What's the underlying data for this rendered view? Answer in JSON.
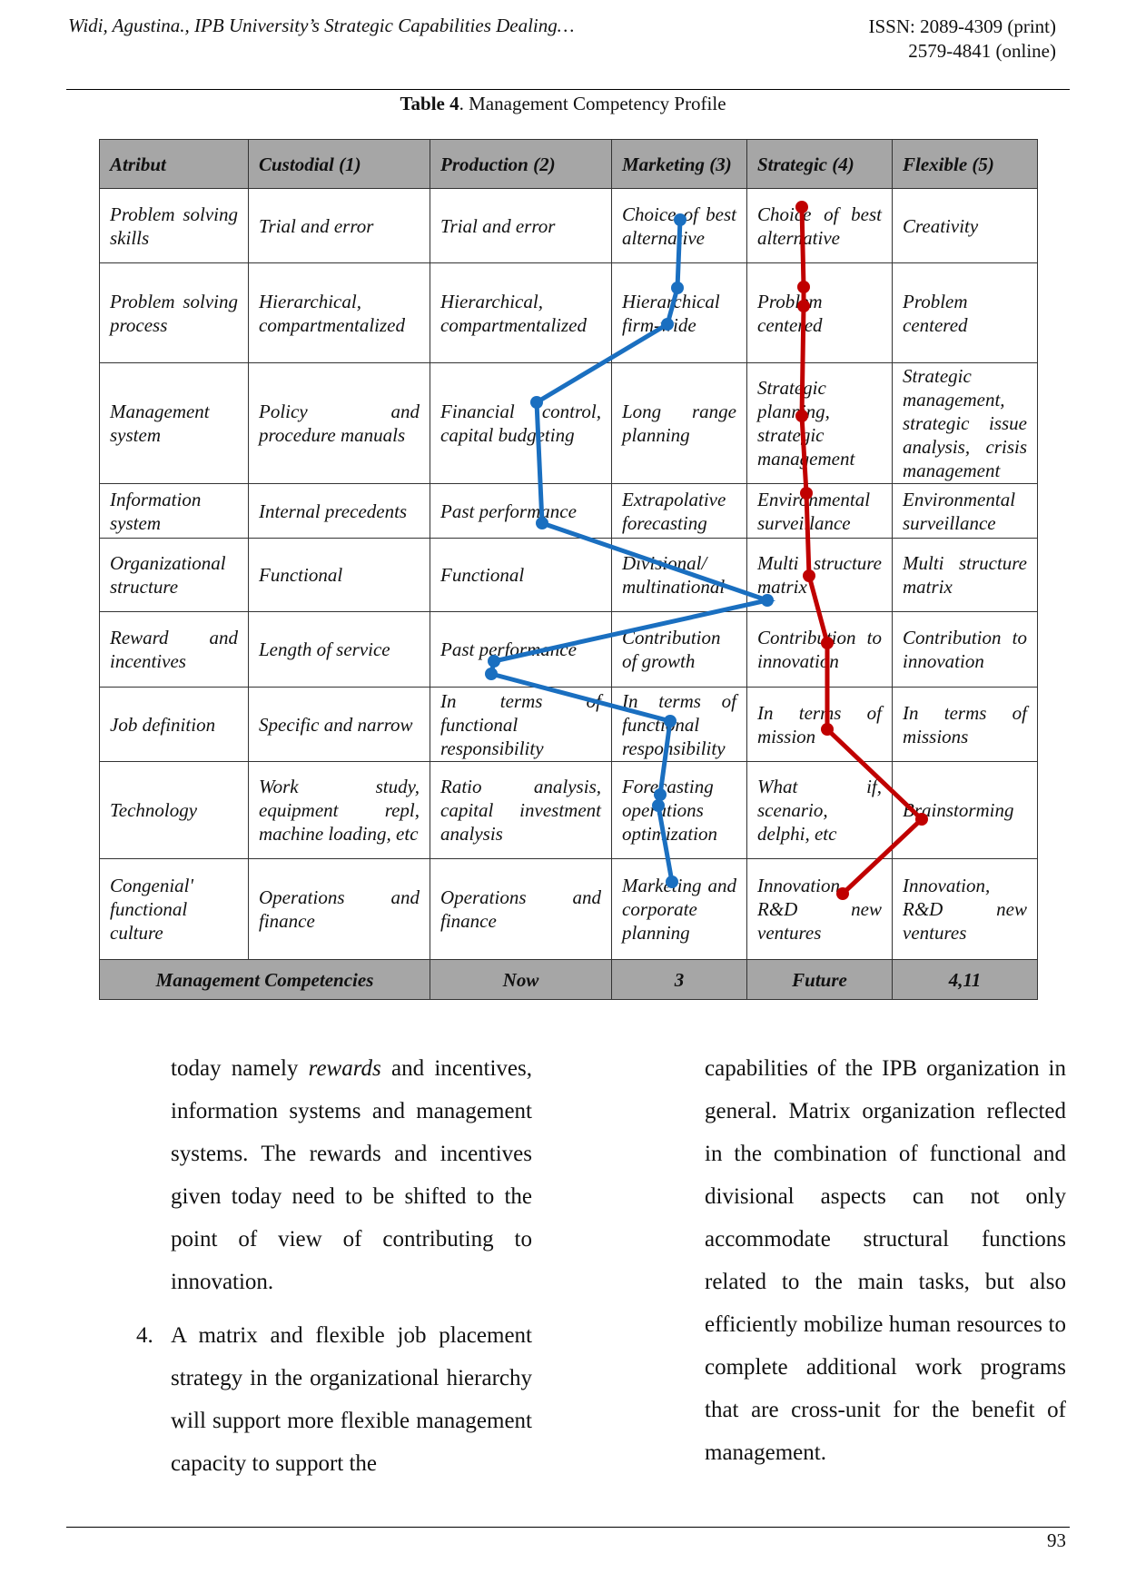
{
  "header": {
    "left": "Widi, Agustina., IPB University’s Strategic Capabilities Dealing…",
    "right_1": "ISSN: 2089-4309  (print)",
    "right_2": "2579-4841 (online)"
  },
  "table": {
    "caption_label": "Table 4",
    "caption_text": ". Management Competency Profile",
    "columns": [
      "Atribut",
      "Custodial (1)",
      "Production (2)",
      "Marketing (3)",
      "Strategic (4)",
      "Flexible (5)"
    ],
    "rows": [
      [
        "Problem solving skills",
        "Trial and error",
        "Trial and error",
        "Choice of best alternative",
        "Choice of best alternative",
        "Creativity"
      ],
      [
        "Problem solving process",
        "Hierarchical, compartmentalized",
        "Hierarchical, compartmentalized",
        "Hierarchical firm-wide",
        "Problem centered",
        "Problem centered"
      ],
      [
        "Management system",
        "Policy and procedure manuals",
        "Financial control, capital budgeting",
        "Long range planning",
        "Strategic planning, strategic management",
        "Strategic management, strategic issue analysis, crisis management"
      ],
      [
        "Information system",
        "Internal precedents",
        "Past performance",
        "Extrapolative forecasting",
        "Environmental surveillance",
        "Environmental surveillance"
      ],
      [
        "Organizational structure",
        "Functional",
        "Functional",
        "Divisional/ multinational",
        "Multi structure matrix",
        "Multi structure matrix"
      ],
      [
        "Reward and incentives",
        "Length of service",
        "Past performance",
        "Contribution of growth",
        "Contribution to innovation",
        "Contribution to innovation"
      ],
      [
        "Job definition",
        "Specific and narrow",
        "In terms of functional responsibility",
        "In terms of functional responsibility",
        "In terms of mission",
        "In terms of missions"
      ],
      [
        "Technology",
        "Work study, equipment repl, machine loading, etc",
        "Ratio analysis, capital investment analysis",
        "Forecasting operations optimization",
        "What if, scenario, delphi, etc",
        "Brainstorming"
      ],
      [
        "Congenial' functional culture",
        "Operations and finance",
        "Operations and finance",
        "Marketing and corporate planning",
        "Innovation, R&D new ventures",
        "Innovation, R&D new ventures"
      ]
    ],
    "footer": [
      "Management Competencies",
      "Now",
      "3",
      "Future",
      "4,11"
    ]
  },
  "left_column": {
    "paragraph_1": [
      "today namely ",
      "rewards",
      " and incentives, information systems and management systems. The rewards and incentives given today need to be shifted to the point of view of contributing to innovation."
    ],
    "item_number": "4.",
    "item_text": "A matrix and flexible job placement strategy in the organizational hierarchy will support more flexible management capacity to support the"
  },
  "right_column": {
    "paragraph": "capabilities of the IPB organization in general. Matrix organization reflected in the combination of functional and divisional aspects can not only accommodate structural functions related to the main tasks, but also efficiently mobilize human resources to complete additional work programs that are cross-unit for the benefit of management."
  },
  "page_number": "93"
}
